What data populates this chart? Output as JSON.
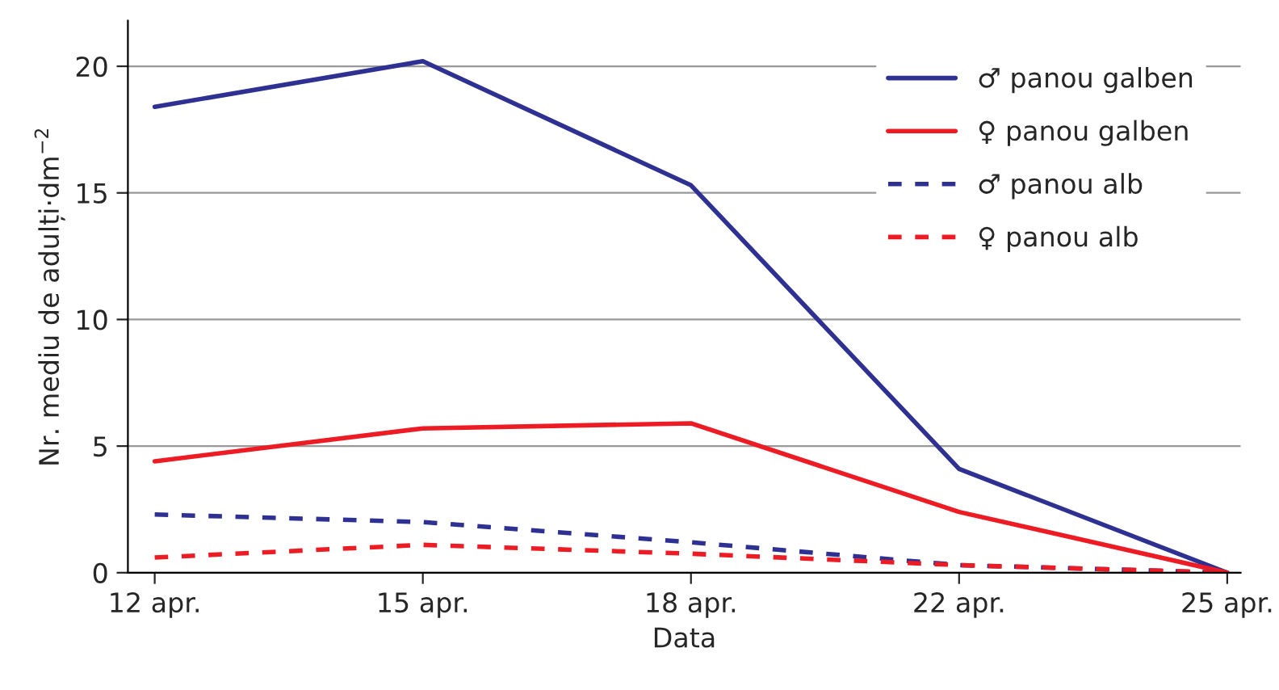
{
  "chart_data": {
    "type": "line",
    "xlabel": "Data",
    "ylabel": "Nr. mediu de adulți·dm$^{−2}$",
    "categories": [
      "12 apr.",
      "15 apr.",
      "18 apr.",
      "22 apr.",
      "25 apr."
    ],
    "series": [
      {
        "name": "♂ panou galben",
        "color": "#2e3192",
        "line_style": "solid",
        "values": [
          18.4,
          20.2,
          15.3,
          4.1,
          0
        ]
      },
      {
        "name": "♀ panou galben",
        "color": "#ed1c24",
        "line_style": "solid",
        "values": [
          4.4,
          5.7,
          5.9,
          2.4,
          0
        ]
      },
      {
        "name": "♂ panou alb",
        "color": "#2e3192",
        "line_style": "dashed",
        "values": [
          2.3,
          2.0,
          1.2,
          0.3,
          0
        ]
      },
      {
        "name": "♀ panou alb",
        "color": "#ed1c24",
        "line_style": "dashed",
        "values": [
          0.6,
          1.1,
          0.75,
          0.3,
          0
        ]
      }
    ],
    "ylim": [
      0,
      21.8
    ],
    "yticks": [
      0,
      5,
      10,
      15,
      20
    ],
    "grid": "y",
    "legend": "top right",
    "marker": "none"
  }
}
